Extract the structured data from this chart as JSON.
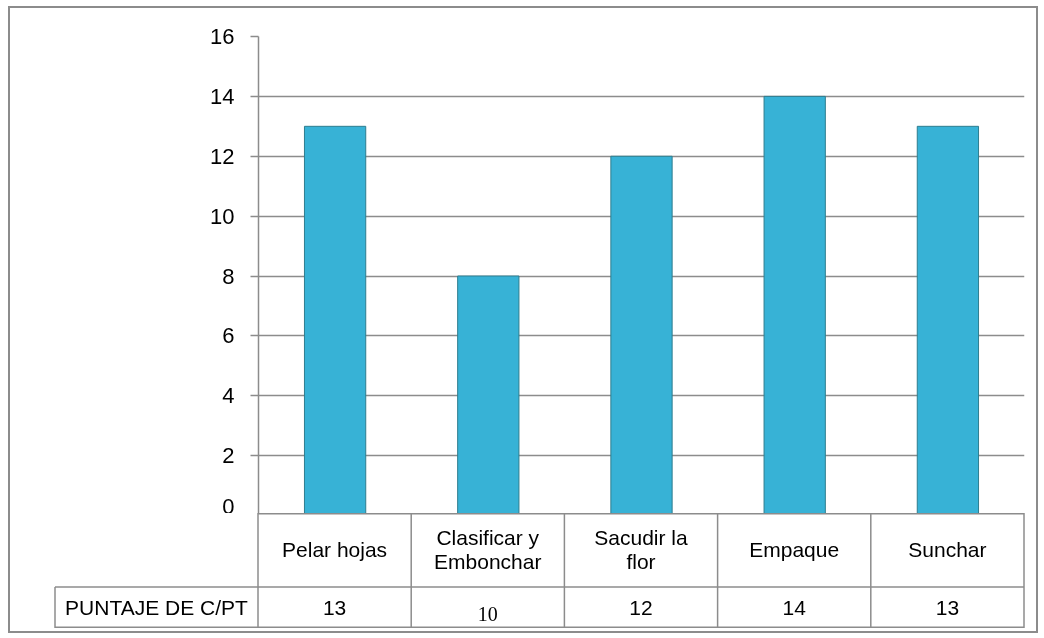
{
  "chart_data": {
    "type": "bar",
    "categories": [
      "Pelar hojas",
      "Clasificar y Embonchar",
      "Sacudir la flor",
      "Empaque",
      "Sunchar"
    ],
    "series": [
      {
        "name": "PUNTAJE DE C/PT",
        "color": "#37b2d6",
        "values": [
          13,
          8,
          12,
          14,
          13
        ],
        "value_labels": [
          "13",
          null,
          "12",
          "14",
          "13"
        ]
      }
    ],
    "ylim": [
      0,
      16
    ],
    "yticks": [
      0,
      2,
      4,
      6,
      8,
      10,
      12,
      14,
      16
    ],
    "grid": "y",
    "annotations": [
      "10"
    ]
  }
}
